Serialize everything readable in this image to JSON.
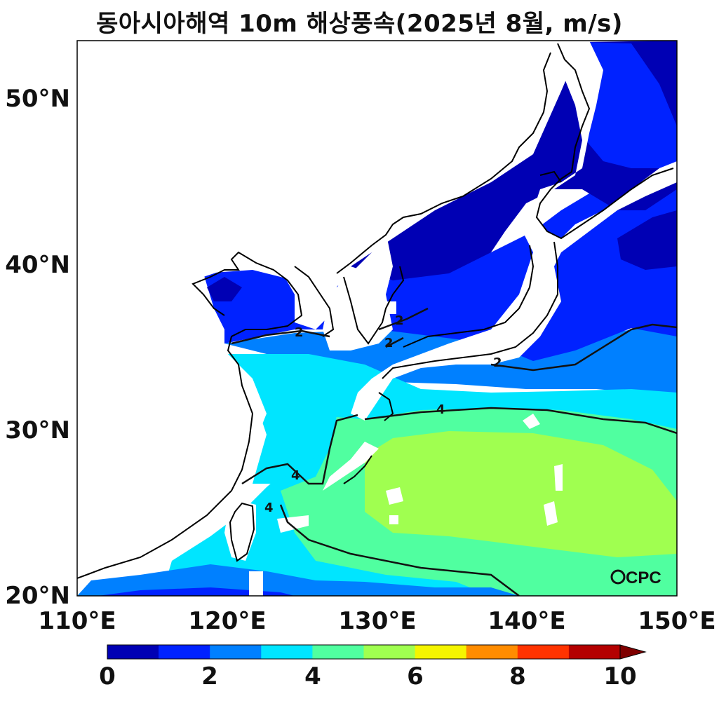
{
  "title": "동아시아해역 10m 해상풍속(2025년 8월, m/s)",
  "map": {
    "lon_range": [
      110,
      150
    ],
    "lat_range": [
      20,
      53.5
    ],
    "lat_ticks": [
      "50°N",
      "40°N",
      "30°N",
      "20°N"
    ],
    "lon_ticks": [
      "110°E",
      "120°E",
      "130°E",
      "140°E",
      "150°E"
    ],
    "contour_labels": [
      "2",
      "2",
      "2",
      "2",
      "4",
      "4",
      "4"
    ],
    "logo": "CPC"
  },
  "colorbar": {
    "ticks": [
      "0",
      "2",
      "4",
      "6",
      "8",
      "10"
    ],
    "bin_step": 1,
    "extend": "max",
    "colors": [
      "#0000b4",
      "#0022ff",
      "#0080ff",
      "#00e5ff",
      "#50ffa0",
      "#a0ff50",
      "#f5f500",
      "#ff8c00",
      "#ff3300",
      "#b40000"
    ],
    "extend_color": "#7f0000"
  }
}
